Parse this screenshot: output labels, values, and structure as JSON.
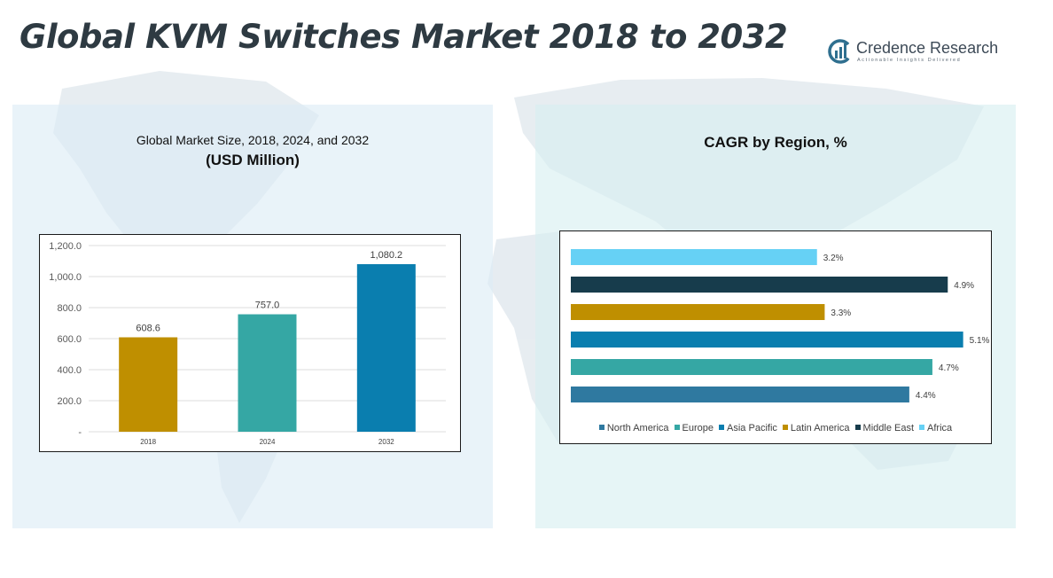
{
  "header": {
    "title": "Global KVM Switches Market 2018 to 2032",
    "logo_name": "Credence Research",
    "logo_tagline": "Actionable Insights Delivered"
  },
  "left_panel": {
    "title": "Global Market Size, 2018, 2024, and 2032",
    "subtitle": "(USD Million)"
  },
  "right_panel": {
    "title": "CAGR by Region, %"
  },
  "colors": {
    "title": "#2e3a42",
    "panel_left_bg": "#dcecf5",
    "panel_right_bg": "#d7eff0",
    "map": "#d3dee6"
  },
  "chart_data": [
    {
      "type": "bar",
      "categories": [
        "2018",
        "2024",
        "2032"
      ],
      "values": [
        608.6,
        757.0,
        1080.2
      ],
      "value_labels": [
        "608.6",
        "757.0",
        "1,080.2"
      ],
      "colors": [
        "#bf8f00",
        "#35a7a4",
        "#0a7eaf"
      ],
      "ylim": [
        0,
        1200
      ],
      "yticks": [
        0,
        200,
        400,
        600,
        800,
        1000,
        1200
      ],
      "ytick_labels": [
        "-",
        "200.0",
        "400.0",
        "600.0",
        "800.0",
        "1,000.0",
        "1,200.0"
      ],
      "grid": true,
      "xlabel": "",
      "ylabel": ""
    },
    {
      "type": "bar",
      "orientation": "horizontal",
      "categories": [
        "North America",
        "Europe",
        "Asia Pacific",
        "Latin America",
        "Middle East",
        "Africa"
      ],
      "values": [
        4.4,
        4.7,
        5.1,
        3.3,
        4.9,
        3.2
      ],
      "value_labels": [
        "4.4%",
        "4.7%",
        "5.1%",
        "3.3%",
        "4.9%",
        "3.2%"
      ],
      "colors": [
        "#2f79a0",
        "#35a7a4",
        "#0a7eaf",
        "#bf8f00",
        "#173c4c",
        "#66d1f5"
      ],
      "xlim": [
        0,
        5.3
      ],
      "legend_position": "bottom",
      "grid": false
    }
  ]
}
